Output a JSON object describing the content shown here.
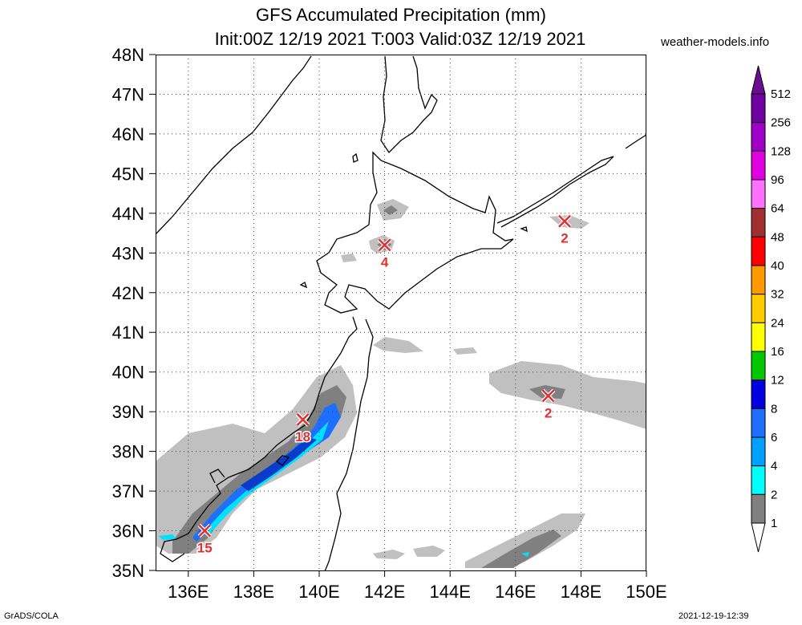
{
  "header": {
    "title": "GFS Accumulated Precipitation (mm)",
    "subtitle": "Init:00Z 12/19 2021 T:003 Valid:03Z 12/19 2021",
    "credit": "weather-models.info"
  },
  "footer": {
    "left": "GrADS/COLA",
    "right": "2021-12-19-12:39"
  },
  "map": {
    "lat_labels": [
      "48N",
      "47N",
      "46N",
      "45N",
      "44N",
      "43N",
      "42N",
      "41N",
      "40N",
      "39N",
      "38N",
      "37N",
      "36N",
      "35N"
    ],
    "lon_labels": [
      "136E",
      "138E",
      "140E",
      "142E",
      "144E",
      "146E",
      "148E",
      "150E"
    ],
    "lat_range": [
      35,
      48
    ],
    "lon_range": [
      135,
      150
    ],
    "grid": "dotted",
    "markers": [
      {
        "label": "4",
        "lon": 142.0,
        "lat": 43.2
      },
      {
        "label": "2",
        "lon": 147.5,
        "lat": 43.8
      },
      {
        "label": "18",
        "lon": 139.5,
        "lat": 38.8
      },
      {
        "label": "2",
        "lon": 147.0,
        "lat": 39.4
      },
      {
        "label": "15",
        "lon": 136.5,
        "lat": 36.0
      }
    ]
  },
  "legend": {
    "levels": [
      "512",
      "256",
      "128",
      "96",
      "64",
      "48",
      "40",
      "32",
      "24",
      "16",
      "12",
      "8",
      "6",
      "4",
      "2",
      "1"
    ],
    "colors": [
      "#7000a0",
      "#a000c8",
      "#e000e0",
      "#ff70ff",
      "#a03030",
      "#ff0000",
      "#ff9900",
      "#ffcc00",
      "#ffff00",
      "#00c800",
      "#0000e0",
      "#1e6eff",
      "#00a0ff",
      "#00ffff",
      "#808080",
      "#c0c0c0"
    ],
    "top_color": "#6a0d91",
    "bottom_color": "#ffffff"
  },
  "colors": {
    "light_precip": "#c0c0c0",
    "mid_precip": "#808080",
    "blue_precip": "#1e6eff",
    "cyan_precip": "#00e0ff",
    "marker": "#e03030"
  }
}
